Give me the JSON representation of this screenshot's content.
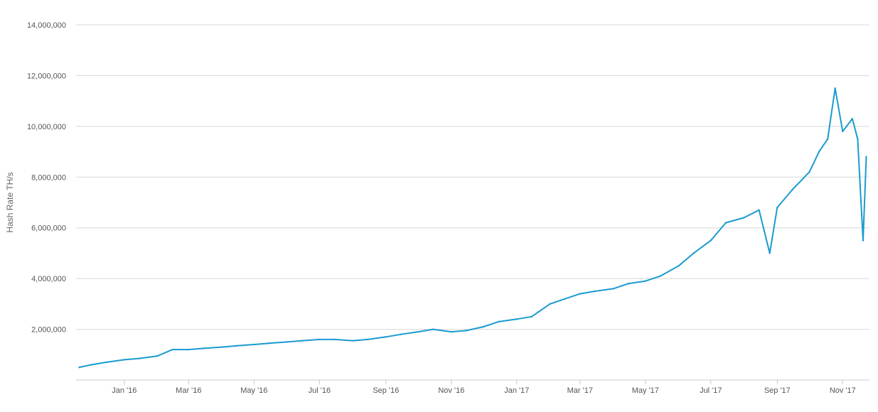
{
  "chart_data": {
    "type": "line",
    "title": "",
    "ylabel": "Hash Rate TH/s",
    "xlabel": "",
    "ylim": [
      0,
      14000000
    ],
    "y_ticks": [
      2000000,
      4000000,
      6000000,
      8000000,
      10000000,
      12000000,
      14000000
    ],
    "y_tick_labels": [
      "2,000,000",
      "4,000,000",
      "6,000,000",
      "8,000,000",
      "10,000,000",
      "12,000,000",
      "14,000,000"
    ],
    "x_range": [
      "2015-11-17",
      "2017-11-26"
    ],
    "x_ticks": [
      "2016-01-01",
      "2016-03-01",
      "2016-05-01",
      "2016-07-01",
      "2016-09-01",
      "2016-11-01",
      "2017-01-01",
      "2017-03-01",
      "2017-05-01",
      "2017-07-01",
      "2017-09-01",
      "2017-11-01"
    ],
    "x_tick_labels": [
      "Jan '16",
      "Mar '16",
      "May '16",
      "Jul '16",
      "Sep '16",
      "Nov '16",
      "Jan '17",
      "Mar '17",
      "May '17",
      "Jul '17",
      "Sep '17",
      "Nov '17"
    ],
    "grid": true,
    "series": [
      {
        "color": "#1a9bd0",
        "x": [
          "2015-11-20",
          "2015-12-01",
          "2015-12-15",
          "2016-01-01",
          "2016-01-15",
          "2016-02-01",
          "2016-02-15",
          "2016-03-01",
          "2016-03-15",
          "2016-04-01",
          "2016-04-15",
          "2016-05-01",
          "2016-05-15",
          "2016-06-01",
          "2016-06-15",
          "2016-07-01",
          "2016-07-15",
          "2016-08-01",
          "2016-08-15",
          "2016-09-01",
          "2016-09-15",
          "2016-10-01",
          "2016-10-15",
          "2016-11-01",
          "2016-11-15",
          "2016-12-01",
          "2016-12-15",
          "2017-01-01",
          "2017-01-15",
          "2017-02-01",
          "2017-02-15",
          "2017-03-01",
          "2017-03-15",
          "2017-04-01",
          "2017-04-15",
          "2017-05-01",
          "2017-05-15",
          "2017-06-01",
          "2017-06-15",
          "2017-07-01",
          "2017-07-15",
          "2017-08-01",
          "2017-08-15",
          "2017-08-25",
          "2017-09-01",
          "2017-09-15",
          "2017-10-01",
          "2017-10-10",
          "2017-10-18",
          "2017-10-25",
          "2017-11-01",
          "2017-11-10",
          "2017-11-15",
          "2017-11-20",
          "2017-11-23"
        ],
        "values": [
          500000,
          600000,
          700000,
          800000,
          850000,
          950000,
          1200000,
          1200000,
          1250000,
          1300000,
          1350000,
          1400000,
          1450000,
          1500000,
          1550000,
          1600000,
          1600000,
          1550000,
          1600000,
          1700000,
          1800000,
          1900000,
          2000000,
          1900000,
          1950000,
          2100000,
          2300000,
          2400000,
          2500000,
          3000000,
          3200000,
          3400000,
          3500000,
          3600000,
          3800000,
          3900000,
          4100000,
          4500000,
          5000000,
          5500000,
          6200000,
          6400000,
          6700000,
          5000000,
          6800000,
          7500000,
          8200000,
          9000000,
          9500000,
          11500000,
          9800000,
          10300000,
          9500000,
          5500000,
          8800000
        ]
      }
    ]
  }
}
